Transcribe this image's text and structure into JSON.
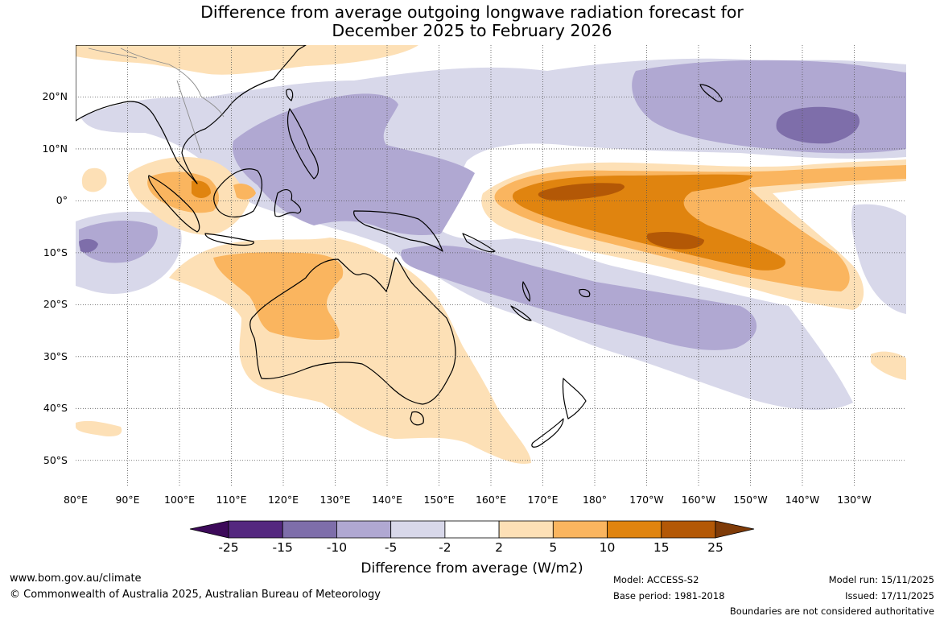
{
  "title": {
    "line1": "Difference from average outgoing longwave radiation forecast for",
    "line2": "December 2025 to February 2026"
  },
  "map": {
    "lat_labels": [
      "20°N",
      "10°N",
      "0°",
      "10°S",
      "20°S",
      "30°S",
      "40°S",
      "50°S"
    ],
    "lat_values": [
      20,
      10,
      0,
      -10,
      -20,
      -30,
      -40,
      -50
    ],
    "lon_labels": [
      "80°E",
      "90°E",
      "100°E",
      "110°E",
      "120°E",
      "130°E",
      "140°E",
      "150°E",
      "160°E",
      "170°E",
      "180°",
      "170°W",
      "160°W",
      "150°W",
      "140°W",
      "130°W"
    ],
    "lon_values": [
      80,
      90,
      100,
      110,
      120,
      130,
      140,
      150,
      160,
      170,
      180,
      190,
      200,
      210,
      220,
      230
    ],
    "lat_range": [
      -55,
      30
    ],
    "lon_range": [
      80,
      240
    ],
    "colors": {
      "land_outline": "#000000",
      "border_outline": "#8c8c8c",
      "grid": "#555555"
    }
  },
  "colorbar": {
    "ticks": [
      "-25",
      "-15",
      "-10",
      "-5",
      "-2",
      "2",
      "5",
      "10",
      "15",
      "25"
    ],
    "colors": [
      "#3d0a5a",
      "#54287f",
      "#7e6eaa",
      "#b0a8d2",
      "#d8d8ea",
      "#ffffff",
      "#fde0b6",
      "#fab55f",
      "#e0840f",
      "#b35806",
      "#7f3b08"
    ],
    "title": "Difference from average (W/m2)"
  },
  "footer": {
    "url": "www.bom.gov.au/climate",
    "copyright": "© Commonwealth of Australia 2025, Australian Bureau of Meteorology",
    "model": "Model: ACCESS-S2",
    "base_period": "Base period: 1981-2018",
    "model_run": "Model run: 15/11/2025",
    "issued": "Issued: 17/11/2025",
    "disclaimer": "Boundaries are not considered authoritative"
  }
}
